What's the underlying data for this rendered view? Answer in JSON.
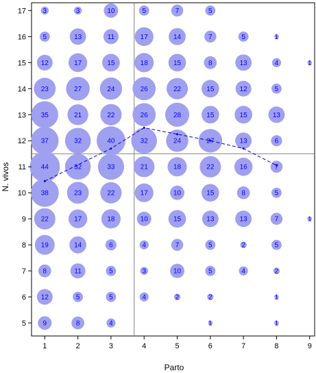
{
  "chart_data": {
    "type": "scatter",
    "xlabel": "Parto",
    "ylabel": "N. vivos",
    "xlim": [
      0.6,
      9.15
    ],
    "ylim": [
      4.5,
      17.3
    ],
    "xticks": [
      1,
      2,
      3,
      4,
      5,
      6,
      7,
      8,
      9
    ],
    "yticks": [
      5,
      6,
      7,
      8,
      9,
      10,
      11,
      12,
      13,
      14,
      15,
      16,
      17
    ],
    "bubble_color": "#a0a0f0",
    "label_color": "#0000ff",
    "points": [
      {
        "x": 1,
        "y": 5,
        "count": 9
      },
      {
        "x": 2,
        "y": 5,
        "count": 8
      },
      {
        "x": 3,
        "y": 5,
        "count": 4
      },
      {
        "x": 6,
        "y": 5,
        "count": 1
      },
      {
        "x": 8,
        "y": 5,
        "count": 1
      },
      {
        "x": 1,
        "y": 6,
        "count": 12
      },
      {
        "x": 2,
        "y": 6,
        "count": 5
      },
      {
        "x": 3,
        "y": 6,
        "count": 5
      },
      {
        "x": 4,
        "y": 6,
        "count": 4
      },
      {
        "x": 5,
        "y": 6,
        "count": 2
      },
      {
        "x": 6,
        "y": 6,
        "count": 2
      },
      {
        "x": 8,
        "y": 6,
        "count": 1
      },
      {
        "x": 1,
        "y": 7,
        "count": 8
      },
      {
        "x": 2,
        "y": 7,
        "count": 11
      },
      {
        "x": 3,
        "y": 7,
        "count": 5
      },
      {
        "x": 4,
        "y": 7,
        "count": 3
      },
      {
        "x": 5,
        "y": 7,
        "count": 10
      },
      {
        "x": 6,
        "y": 7,
        "count": 5
      },
      {
        "x": 7,
        "y": 7,
        "count": 4
      },
      {
        "x": 8,
        "y": 7,
        "count": 2
      },
      {
        "x": 1,
        "y": 8,
        "count": 19
      },
      {
        "x": 2,
        "y": 8,
        "count": 14
      },
      {
        "x": 3,
        "y": 8,
        "count": 6
      },
      {
        "x": 4,
        "y": 8,
        "count": 4
      },
      {
        "x": 5,
        "y": 8,
        "count": 7
      },
      {
        "x": 6,
        "y": 8,
        "count": 5
      },
      {
        "x": 7,
        "y": 8,
        "count": 2
      },
      {
        "x": 8,
        "y": 8,
        "count": 5
      },
      {
        "x": 1,
        "y": 9,
        "count": 22
      },
      {
        "x": 2,
        "y": 9,
        "count": 17
      },
      {
        "x": 3,
        "y": 9,
        "count": 18
      },
      {
        "x": 4,
        "y": 9,
        "count": 10
      },
      {
        "x": 5,
        "y": 9,
        "count": 15
      },
      {
        "x": 6,
        "y": 9,
        "count": 13
      },
      {
        "x": 7,
        "y": 9,
        "count": 13
      },
      {
        "x": 8,
        "y": 9,
        "count": 7
      },
      {
        "x": 9,
        "y": 9,
        "count": 1
      },
      {
        "x": 1,
        "y": 10,
        "count": 38
      },
      {
        "x": 2,
        "y": 10,
        "count": 23
      },
      {
        "x": 3,
        "y": 10,
        "count": 22
      },
      {
        "x": 4,
        "y": 10,
        "count": 17
      },
      {
        "x": 5,
        "y": 10,
        "count": 10
      },
      {
        "x": 6,
        "y": 10,
        "count": 15
      },
      {
        "x": 7,
        "y": 10,
        "count": 8
      },
      {
        "x": 8,
        "y": 10,
        "count": 5
      },
      {
        "x": 1,
        "y": 11,
        "count": 44
      },
      {
        "x": 2,
        "y": 11,
        "count": 32
      },
      {
        "x": 3,
        "y": 11,
        "count": 33
      },
      {
        "x": 4,
        "y": 11,
        "count": 21
      },
      {
        "x": 5,
        "y": 11,
        "count": 18
      },
      {
        "x": 6,
        "y": 11,
        "count": 22
      },
      {
        "x": 7,
        "y": 11,
        "count": 16
      },
      {
        "x": 8,
        "y": 11,
        "count": 7
      },
      {
        "x": 1,
        "y": 12,
        "count": 37
      },
      {
        "x": 2,
        "y": 12,
        "count": 32
      },
      {
        "x": 3,
        "y": 12,
        "count": 40
      },
      {
        "x": 4,
        "y": 12,
        "count": 32
      },
      {
        "x": 5,
        "y": 12,
        "count": 24
      },
      {
        "x": 6,
        "y": 12,
        "count": 27
      },
      {
        "x": 7,
        "y": 12,
        "count": 13
      },
      {
        "x": 8,
        "y": 12,
        "count": 6
      },
      {
        "x": 1,
        "y": 13,
        "count": 35
      },
      {
        "x": 2,
        "y": 13,
        "count": 21
      },
      {
        "x": 3,
        "y": 13,
        "count": 22
      },
      {
        "x": 4,
        "y": 13,
        "count": 26
      },
      {
        "x": 5,
        "y": 13,
        "count": 28
      },
      {
        "x": 6,
        "y": 13,
        "count": 15
      },
      {
        "x": 7,
        "y": 13,
        "count": 15
      },
      {
        "x": 8,
        "y": 13,
        "count": 13
      },
      {
        "x": 1,
        "y": 14,
        "count": 23
      },
      {
        "x": 2,
        "y": 14,
        "count": 27
      },
      {
        "x": 3,
        "y": 14,
        "count": 24
      },
      {
        "x": 4,
        "y": 14,
        "count": 26
      },
      {
        "x": 5,
        "y": 14,
        "count": 22
      },
      {
        "x": 6,
        "y": 14,
        "count": 15
      },
      {
        "x": 7,
        "y": 14,
        "count": 12
      },
      {
        "x": 8,
        "y": 14,
        "count": 5
      },
      {
        "x": 1,
        "y": 15,
        "count": 12
      },
      {
        "x": 2,
        "y": 15,
        "count": 17
      },
      {
        "x": 3,
        "y": 15,
        "count": 15
      },
      {
        "x": 4,
        "y": 15,
        "count": 18
      },
      {
        "x": 5,
        "y": 15,
        "count": 15
      },
      {
        "x": 6,
        "y": 15,
        "count": 8
      },
      {
        "x": 7,
        "y": 15,
        "count": 13
      },
      {
        "x": 8,
        "y": 15,
        "count": 4
      },
      {
        "x": 9,
        "y": 15,
        "count": 1
      },
      {
        "x": 1,
        "y": 16,
        "count": 5
      },
      {
        "x": 2,
        "y": 16,
        "count": 13
      },
      {
        "x": 3,
        "y": 16,
        "count": 11
      },
      {
        "x": 4,
        "y": 16,
        "count": 17
      },
      {
        "x": 5,
        "y": 16,
        "count": 14
      },
      {
        "x": 6,
        "y": 16,
        "count": 7
      },
      {
        "x": 7,
        "y": 16,
        "count": 5
      },
      {
        "x": 8,
        "y": 16,
        "count": 1
      },
      {
        "x": 1,
        "y": 17,
        "count": 3
      },
      {
        "x": 2,
        "y": 17,
        "count": 3
      },
      {
        "x": 3,
        "y": 17,
        "count": 10
      },
      {
        "x": 4,
        "y": 17,
        "count": 5
      },
      {
        "x": 5,
        "y": 17,
        "count": 7
      },
      {
        "x": 6,
        "y": 17,
        "count": 5
      }
    ],
    "mean_line": {
      "color": "#0000cc",
      "style": "dashed",
      "points": [
        {
          "x": 1,
          "y": 10.45
        },
        {
          "x": 3,
          "y": 11.7
        },
        {
          "x": 4,
          "y": 12.5
        },
        {
          "x": 5,
          "y": 12.25
        },
        {
          "x": 6,
          "y": 12.0
        },
        {
          "x": 7,
          "y": 11.7
        },
        {
          "x": 8,
          "y": 11.05
        }
      ]
    },
    "reference_lines": {
      "vertical_x": 3.7,
      "horizontal_y": 11.5,
      "color": "#808080"
    }
  }
}
